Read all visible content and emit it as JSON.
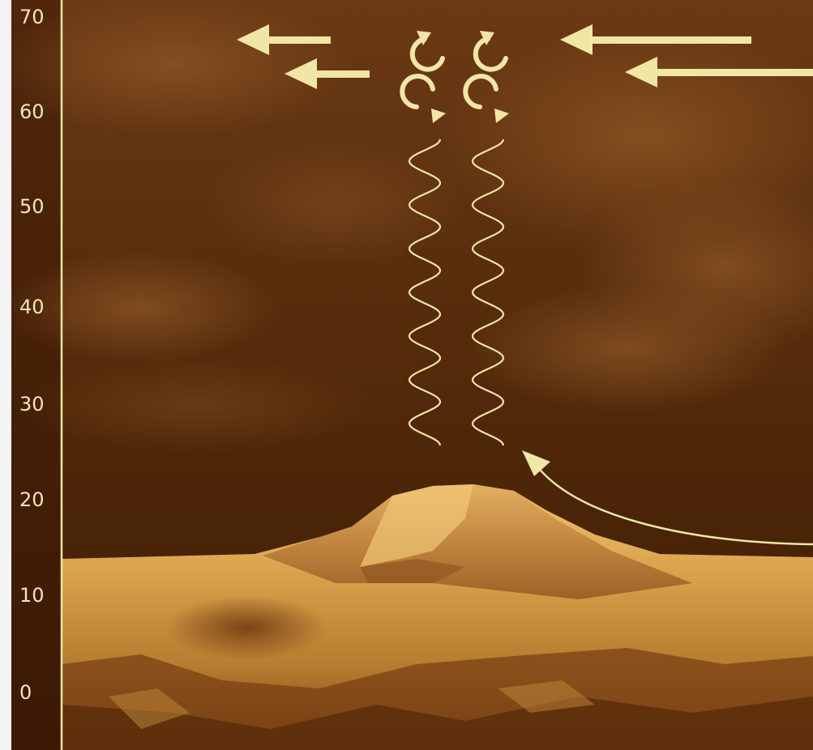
{
  "axis": {
    "ticks": [
      "70",
      "60",
      "50",
      "40",
      "30",
      "20",
      "10",
      "0"
    ]
  },
  "colors": {
    "annotation": "#f0e6a6",
    "sky_top": "#6a3a12",
    "sky_mid": "#4e2608",
    "surface_light": "#e8b85a",
    "surface_dark": "#6a3a10"
  },
  "icons": {
    "wind_arrows": [
      "arrow-left-icon",
      "arrow-left-icon",
      "arrow-left-icon",
      "arrow-left-icon"
    ],
    "eddies": [
      "rotation-clockwise-icon",
      "rotation-clockwise-icon",
      "rotation-counterclockwise-icon",
      "rotation-counterclockwise-icon"
    ],
    "waves": [
      "wave-squiggle-icon",
      "wave-squiggle-icon"
    ],
    "curved_arrow": "curved-arrow-icon"
  }
}
